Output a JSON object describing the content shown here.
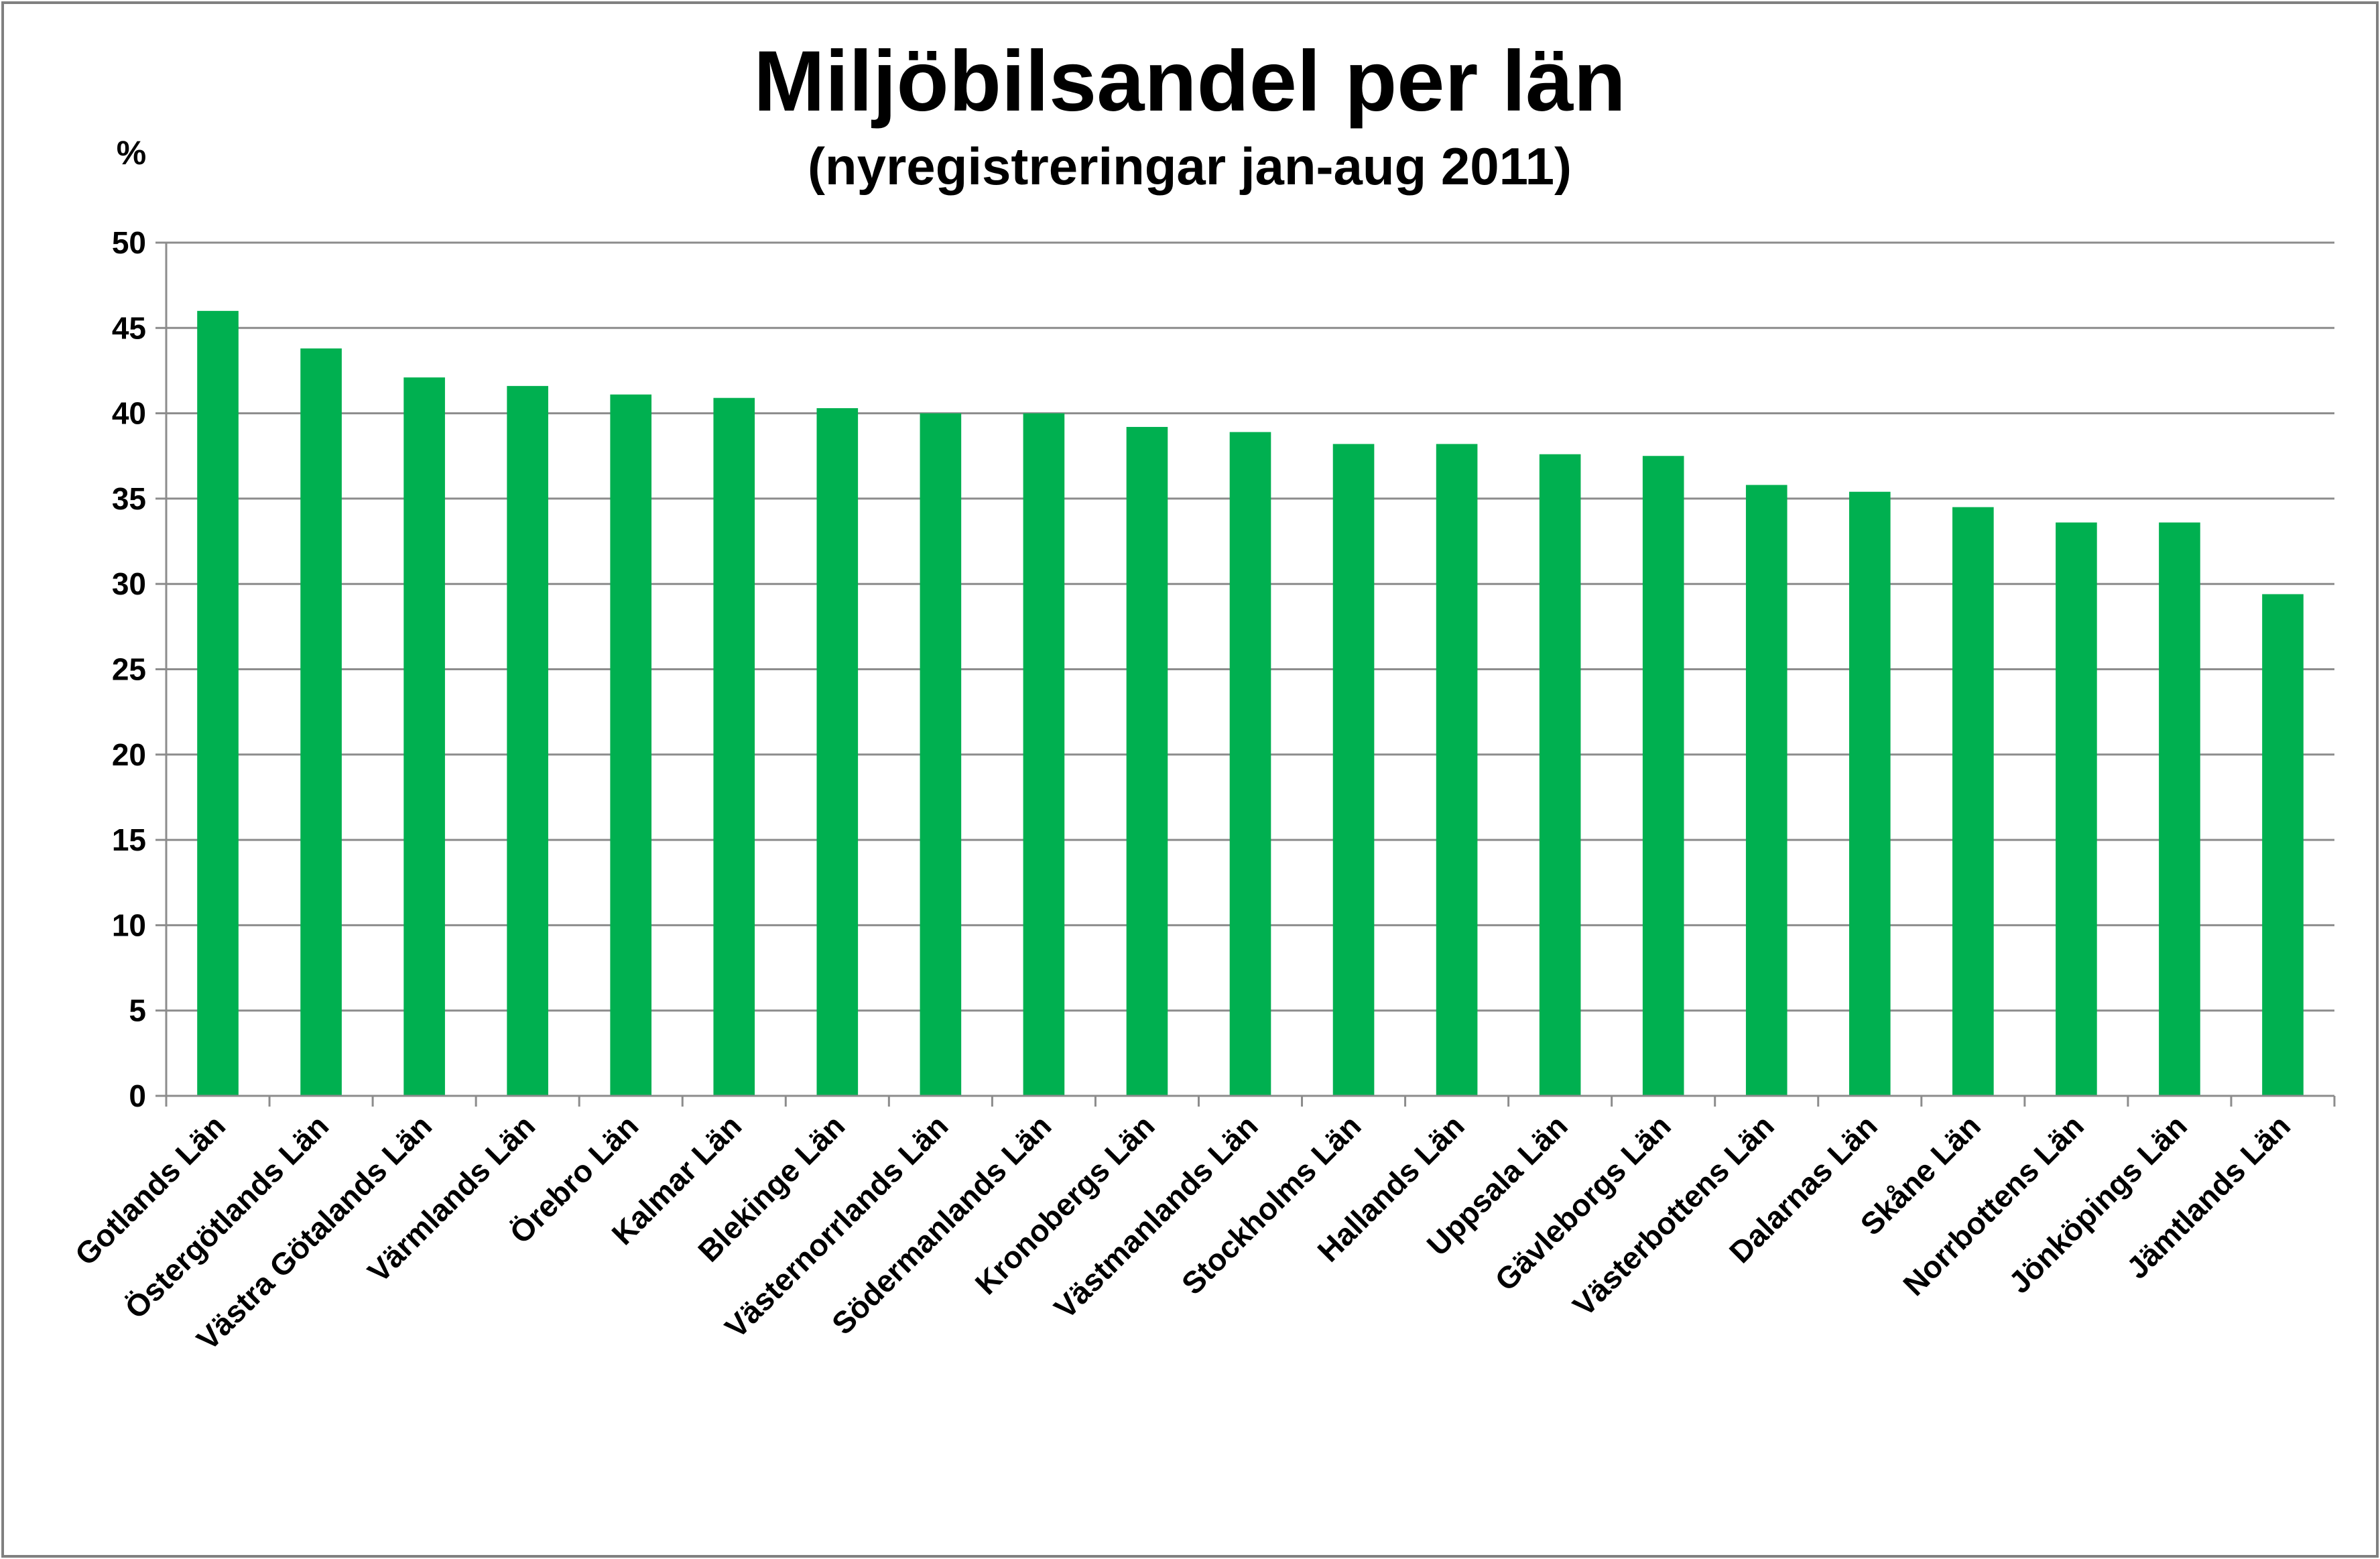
{
  "chart_data": {
    "type": "bar",
    "title": "Miljöbilsandel per län",
    "subtitle": "(nyregistreringar jan-aug 2011)",
    "ylabel": "%",
    "xlabel": "",
    "ylim": [
      0,
      50
    ],
    "yticks": [
      0,
      5,
      10,
      15,
      20,
      25,
      30,
      35,
      40,
      45,
      50
    ],
    "grid": true,
    "legend": "none",
    "bar_color": "#00b050",
    "categories": [
      "Gotlands Län",
      "Östergötlands Län",
      "Västra Götalands Län",
      "Värmlands Län",
      "Örebro Län",
      "Kalmar Län",
      "Blekinge Län",
      "Västernorrlands Län",
      "Södermanlands Län",
      "Kronobergs Län",
      "Västmanlands Län",
      "Stockholms Län",
      "Hallands Län",
      "Uppsala Län",
      "Gävleborgs Län",
      "Västerbottens Län",
      "Dalarnas Län",
      "Skåne Län",
      "Norrbottens Län",
      "Jönköpings Län",
      "Jämtlands Län"
    ],
    "values": [
      46.0,
      43.8,
      42.1,
      41.6,
      41.1,
      40.9,
      40.3,
      40.0,
      40.0,
      39.2,
      38.9,
      38.2,
      38.2,
      37.6,
      37.5,
      35.8,
      35.4,
      34.5,
      33.6,
      33.6,
      29.4
    ]
  }
}
